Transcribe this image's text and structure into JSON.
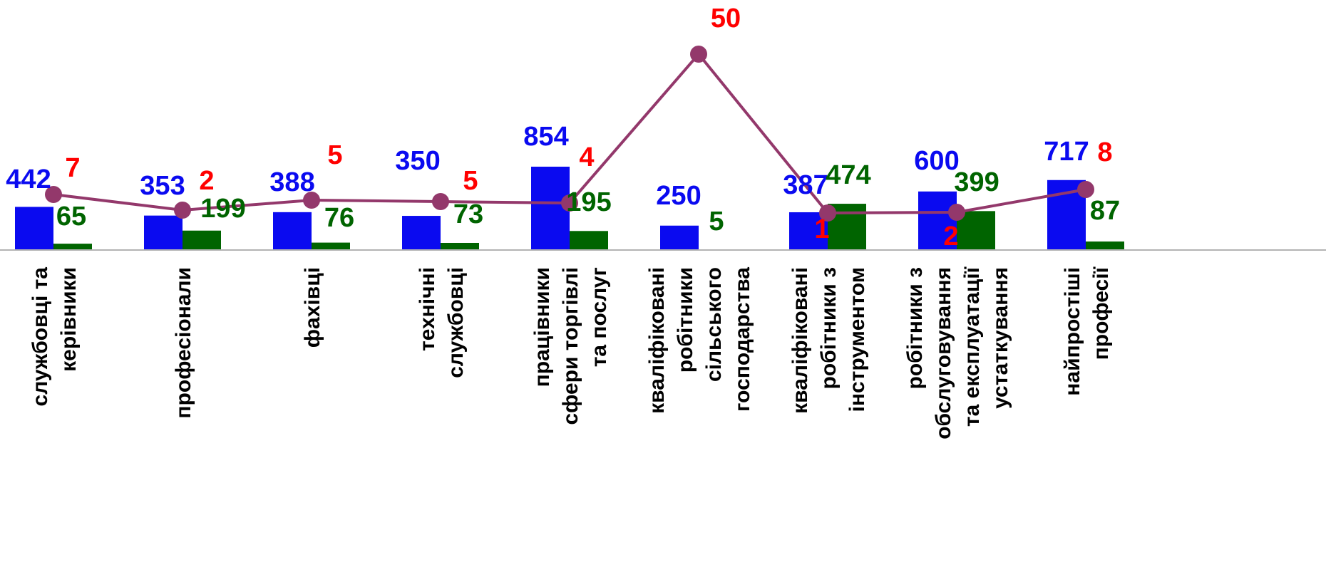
{
  "chart_data": {
    "type": "bar",
    "categories": [
      [
        "службовці та",
        "керівники"
      ],
      [
        "професіонали"
      ],
      [
        "фахівці"
      ],
      [
        "технічні",
        "службовці"
      ],
      [
        "працівники",
        "сфери торгівлі",
        "та послуг"
      ],
      [
        "кваліфіковані",
        "робітники",
        "сільського",
        "господарства"
      ],
      [
        "кваліфіковані",
        "робітники з",
        "інструментом"
      ],
      [
        "робітники з",
        "обслуговування",
        "та експлуатації",
        "устаткування"
      ],
      [
        "найпростіші",
        "професії"
      ]
    ],
    "series": [
      {
        "type": "bar",
        "color": "#0a0af0",
        "values": [
          442,
          353,
          388,
          350,
          854,
          250,
          387,
          600,
          717
        ]
      },
      {
        "type": "bar",
        "color": "#006400",
        "values": [
          65,
          199,
          76,
          73,
          195,
          5,
          474,
          399,
          87
        ]
      },
      {
        "type": "line",
        "color": "#93386b",
        "label_color": "#ff0000",
        "values": [
          7,
          2,
          5,
          5,
          4,
          50,
          1,
          2,
          8
        ]
      }
    ]
  }
}
